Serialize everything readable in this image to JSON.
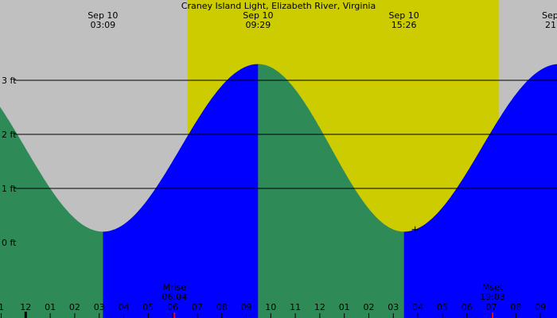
{
  "chart_data": {
    "type": "area",
    "title": "Craney Island Light, Elizabeth River, Virginia",
    "tide_events": [
      {
        "date": "Sep 10",
        "time": "03:09",
        "type": "low",
        "height_ft": 0.2
      },
      {
        "date": "Sep 10",
        "time": "09:29",
        "type": "high",
        "height_ft": 3.3
      },
      {
        "date": "Sep 10",
        "time": "15:26",
        "type": "low",
        "height_ft": 0.2
      },
      {
        "date": "Sep",
        "time": "21",
        "type": "high",
        "height_ft": 3.3
      }
    ],
    "y_ticks": [
      {
        "value": 3,
        "label": "3 ft"
      },
      {
        "value": 2,
        "label": "2 ft"
      },
      {
        "value": 1,
        "label": "1 ft"
      },
      {
        "value": 0,
        "label": "0 ft"
      }
    ],
    "hour_ticks": [
      {
        "hour": 0,
        "label": "1"
      },
      {
        "hour": 1,
        "label": "12"
      },
      {
        "hour": 2,
        "label": "01"
      },
      {
        "hour": 3,
        "label": "02"
      },
      {
        "hour": 4,
        "label": "03"
      },
      {
        "hour": 5,
        "label": "04"
      },
      {
        "hour": 6,
        "label": "05"
      },
      {
        "hour": 7,
        "label": "06"
      },
      {
        "hour": 8,
        "label": "07"
      },
      {
        "hour": 9,
        "label": "08"
      },
      {
        "hour": 10,
        "label": "09"
      },
      {
        "hour": 11,
        "label": "10"
      },
      {
        "hour": 12,
        "label": "11"
      },
      {
        "hour": 13,
        "label": "12"
      },
      {
        "hour": 14,
        "label": "01"
      },
      {
        "hour": 15,
        "label": "02"
      },
      {
        "hour": 16,
        "label": "03"
      },
      {
        "hour": 17,
        "label": "04"
      },
      {
        "hour": 18,
        "label": "05"
      },
      {
        "hour": 19,
        "label": "06"
      },
      {
        "hour": 20,
        "label": "07"
      },
      {
        "hour": 21,
        "label": "08"
      },
      {
        "hour": 22,
        "label": "09"
      }
    ],
    "daylight": {
      "start_hour": 7.6,
      "end_hour": 20.3
    },
    "moon_events": [
      {
        "label": "Mrise",
        "time": "06:04",
        "hour": 7.07
      },
      {
        "label": "Mset",
        "time": "19:03",
        "hour": 20.05
      }
    ],
    "colors": {
      "night_sky": "#c0c0c0",
      "day_sky": "#cccc00",
      "falling_tide": "#2e8b57",
      "rising_tide": "#0000ff",
      "moon_tick": "#ff0000"
    }
  }
}
